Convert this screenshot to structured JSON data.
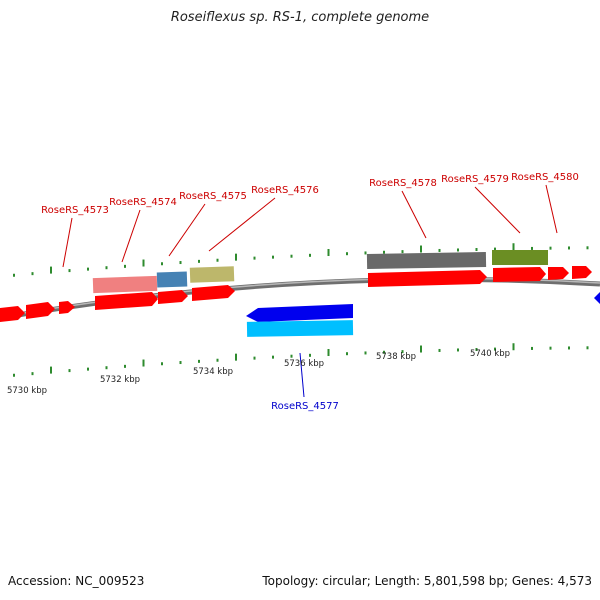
{
  "title": "Roseiflexus sp. RS-1, complete genome",
  "accession_text": "Accession: NC_009523",
  "summary_text": "Topology: circular; Length: 5,801,598 bp; Genes: 4,573",
  "colors": {
    "backbone": "#8a8a8a",
    "tick": "#2e8b2e",
    "cds": "#ff0000",
    "forward_label": "#cc0000",
    "reverse_label": "#0000cc",
    "reverse_cds": "#0000ee",
    "reverse_feature": "#00bfff"
  },
  "scale_labels": [
    "5730 kbp",
    "5732 kbp",
    "5734 kbp",
    "5736 kbp",
    "5738 kbp",
    "5740 kbp"
  ],
  "gene_labels": [
    {
      "text": "RoseRS_4573",
      "strand": "forward"
    },
    {
      "text": "RoseRS_4574",
      "strand": "forward"
    },
    {
      "text": "RoseRS_4575",
      "strand": "forward"
    },
    {
      "text": "RoseRS_4576",
      "strand": "forward"
    },
    {
      "text": "RoseRS_4577",
      "strand": "reverse"
    },
    {
      "text": "RoseRS_4578",
      "strand": "forward"
    },
    {
      "text": "RoseRS_4579",
      "strand": "forward"
    },
    {
      "text": "RoseRS_4580",
      "strand": "forward"
    }
  ]
}
